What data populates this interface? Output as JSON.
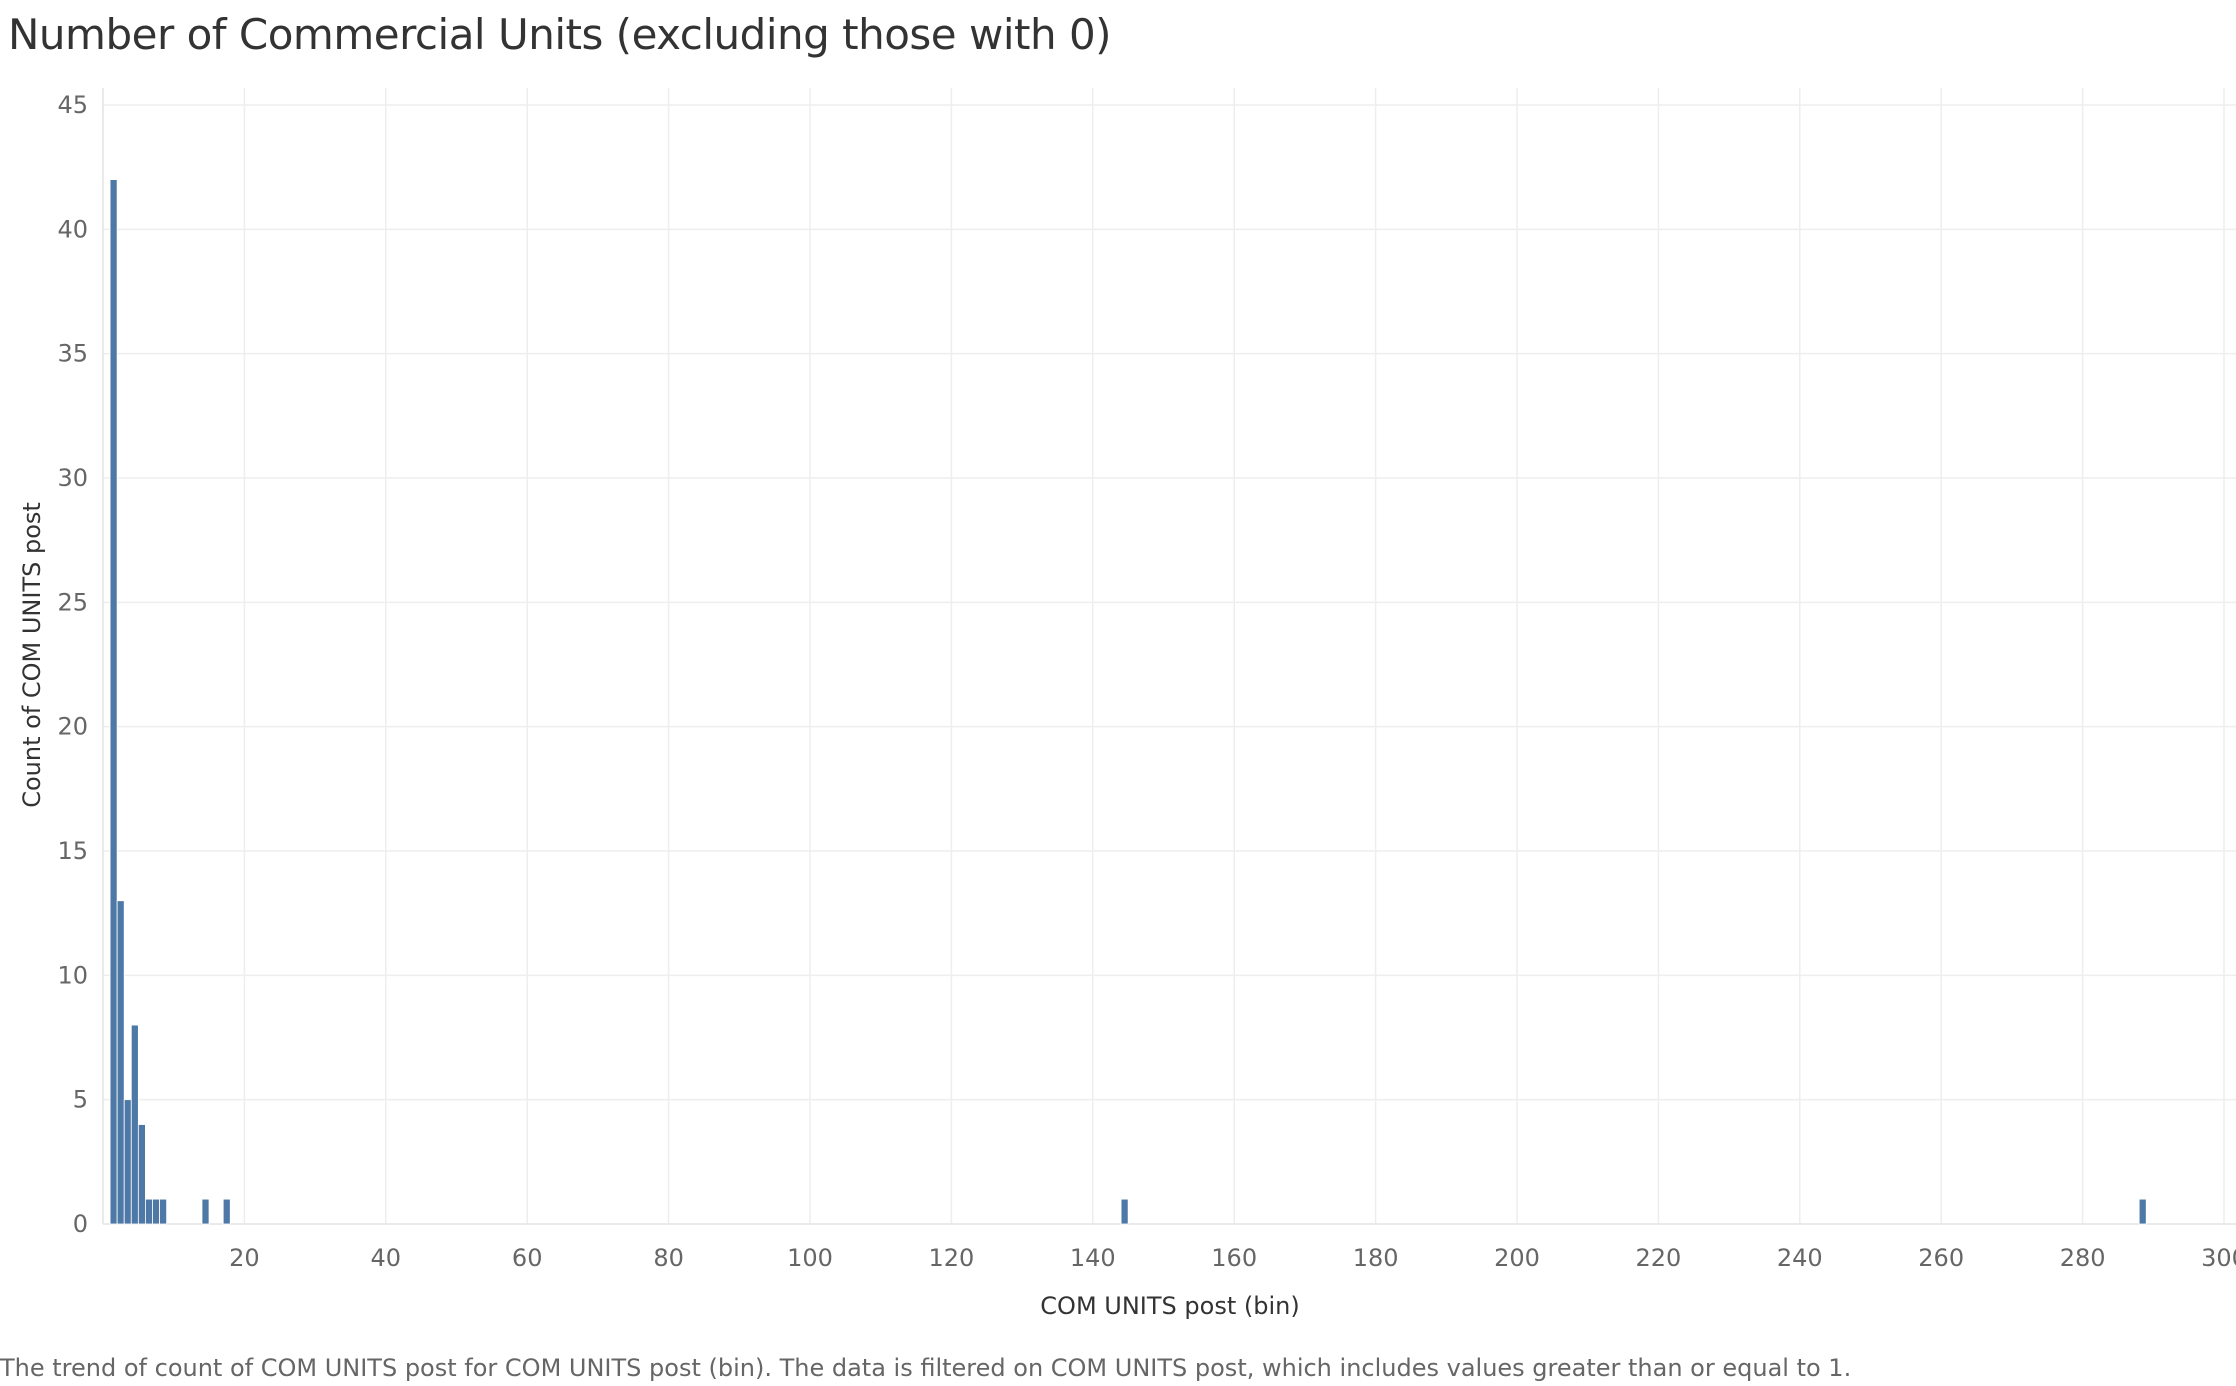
{
  "chart_data": {
    "type": "bar",
    "title": "Number of Commercial Units (excluding those with 0)",
    "xlabel": "COM UNITS post (bin)",
    "ylabel": "Count of COM UNITS post",
    "caption": "The trend of count of COM UNITS post for COM UNITS post (bin). The data is filtered on COM UNITS post, which includes values greater than or equal to 1.",
    "xlim": [
      0,
      303
    ],
    "ylim": [
      0,
      45
    ],
    "x_ticks": [
      20,
      40,
      60,
      80,
      100,
      120,
      140,
      160,
      180,
      200,
      220,
      240,
      260,
      280,
      300
    ],
    "y_ticks": [
      0,
      5,
      10,
      15,
      20,
      25,
      30,
      35,
      40,
      45
    ],
    "bin_width": 1,
    "grid": true,
    "bar_color": "#4e79a7",
    "bins": [
      1,
      2,
      3,
      4,
      5,
      6,
      7,
      8,
      14,
      17,
      144,
      288
    ],
    "values": [
      42,
      13,
      5,
      8,
      4,
      1,
      1,
      1,
      1,
      1,
      1,
      1
    ]
  }
}
